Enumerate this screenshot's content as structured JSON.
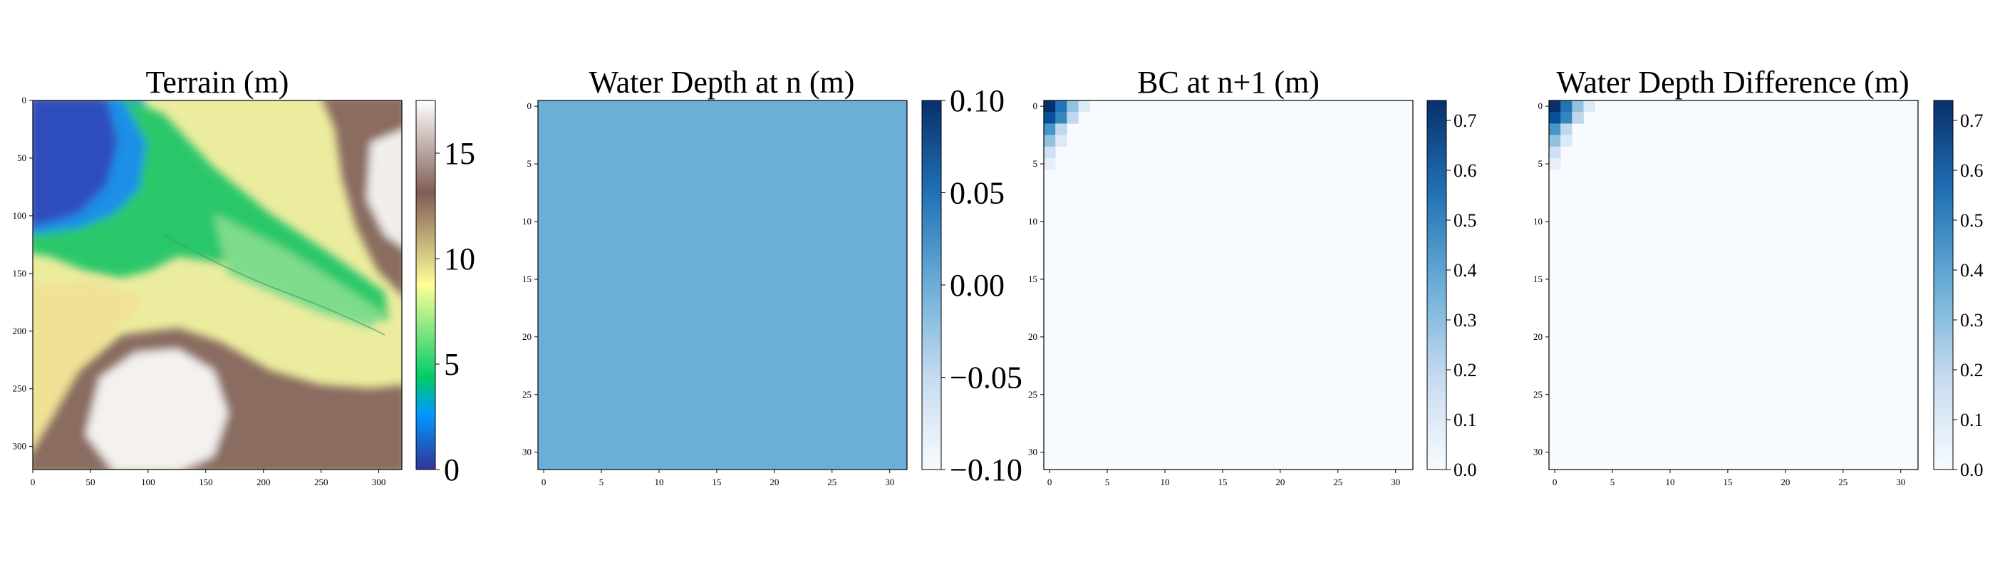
{
  "figure": {
    "background": "#ffffff"
  },
  "chart_data": [
    {
      "type": "heatmap",
      "title": "Terrain (m)",
      "colormap": "terrain",
      "grid_size": 320,
      "x_ticks": [
        0,
        50,
        100,
        150,
        200,
        250,
        300
      ],
      "y_ticks": [
        0,
        50,
        100,
        150,
        200,
        250,
        300
      ],
      "xlim": [
        0,
        320
      ],
      "ylim": [
        320,
        0
      ],
      "colorbar": {
        "min": 0,
        "max": 17.5,
        "ticks": [
          0,
          5,
          10,
          15
        ]
      },
      "description_values": {
        "low_region": "upper-left (about 0–3 m)",
        "channel": "diagonal green band from upper-left to right (about 5–7 m)",
        "high_region": "right edge and lower-center (about 15–17.5 m)"
      }
    },
    {
      "type": "heatmap",
      "title": "Water Depth at n (m)",
      "colormap": "Blues",
      "grid_size": 32,
      "x_ticks": [
        0,
        5,
        10,
        15,
        20,
        25,
        30
      ],
      "y_ticks": [
        0,
        5,
        10,
        15,
        20,
        25,
        30
      ],
      "xlim": [
        -0.5,
        31.5
      ],
      "ylim": [
        31.5,
        -0.5
      ],
      "uniform_value": 0.0,
      "colorbar": {
        "min": -0.1,
        "max": 0.1,
        "ticks": [
          0.1,
          0.05,
          0.0,
          -0.05,
          -0.1
        ],
        "tick_labels": [
          "0.10",
          "0.05",
          "0.00",
          "−0.05",
          "−0.10"
        ]
      }
    },
    {
      "type": "heatmap",
      "title": "BC at n+1 (m)",
      "colormap": "Blues",
      "grid_size": 32,
      "x_ticks": [
        0,
        5,
        10,
        15,
        20,
        25,
        30
      ],
      "y_ticks": [
        0,
        5,
        10,
        15,
        20,
        25,
        30
      ],
      "xlim": [
        -0.5,
        31.5
      ],
      "ylim": [
        31.5,
        -0.5
      ],
      "nonzero_cells": [
        {
          "row": 0,
          "col": 0,
          "value": 0.74
        },
        {
          "row": 0,
          "col": 1,
          "value": 0.55
        },
        {
          "row": 0,
          "col": 2,
          "value": 0.3
        },
        {
          "row": 0,
          "col": 3,
          "value": 0.1
        },
        {
          "row": 1,
          "col": 0,
          "value": 0.65
        },
        {
          "row": 1,
          "col": 1,
          "value": 0.5
        },
        {
          "row": 1,
          "col": 2,
          "value": 0.2
        },
        {
          "row": 2,
          "col": 0,
          "value": 0.45
        },
        {
          "row": 2,
          "col": 1,
          "value": 0.2
        },
        {
          "row": 3,
          "col": 0,
          "value": 0.3
        },
        {
          "row": 3,
          "col": 1,
          "value": 0.1
        },
        {
          "row": 4,
          "col": 0,
          "value": 0.15
        },
        {
          "row": 5,
          "col": 0,
          "value": 0.07
        }
      ],
      "colorbar": {
        "min": 0,
        "max": 0.74,
        "ticks": [
          0.0,
          0.1,
          0.2,
          0.3,
          0.4,
          0.5,
          0.6,
          0.7
        ],
        "tick_labels": [
          "0.0",
          "0.1",
          "0.2",
          "0.3",
          "0.4",
          "0.5",
          "0.6",
          "0.7"
        ]
      }
    },
    {
      "type": "heatmap",
      "title": "Water Depth Difference (m)",
      "colormap": "Blues",
      "grid_size": 32,
      "x_ticks": [
        0,
        5,
        10,
        15,
        20,
        25,
        30
      ],
      "y_ticks": [
        0,
        5,
        10,
        15,
        20,
        25,
        30
      ],
      "xlim": [
        -0.5,
        31.5
      ],
      "ylim": [
        31.5,
        -0.5
      ],
      "nonzero_cells": [
        {
          "row": 0,
          "col": 0,
          "value": 0.74
        },
        {
          "row": 0,
          "col": 1,
          "value": 0.55
        },
        {
          "row": 0,
          "col": 2,
          "value": 0.3
        },
        {
          "row": 0,
          "col": 3,
          "value": 0.1
        },
        {
          "row": 1,
          "col": 0,
          "value": 0.65
        },
        {
          "row": 1,
          "col": 1,
          "value": 0.5
        },
        {
          "row": 1,
          "col": 2,
          "value": 0.2
        },
        {
          "row": 2,
          "col": 0,
          "value": 0.45
        },
        {
          "row": 2,
          "col": 1,
          "value": 0.2
        },
        {
          "row": 3,
          "col": 0,
          "value": 0.3
        },
        {
          "row": 3,
          "col": 1,
          "value": 0.1
        },
        {
          "row": 4,
          "col": 0,
          "value": 0.15
        },
        {
          "row": 5,
          "col": 0,
          "value": 0.07
        }
      ],
      "colorbar": {
        "min": 0,
        "max": 0.74,
        "ticks": [
          0.0,
          0.1,
          0.2,
          0.3,
          0.4,
          0.5,
          0.6,
          0.7
        ],
        "tick_labels": [
          "0.0",
          "0.1",
          "0.2",
          "0.3",
          "0.4",
          "0.5",
          "0.6",
          "0.7"
        ]
      }
    }
  ]
}
